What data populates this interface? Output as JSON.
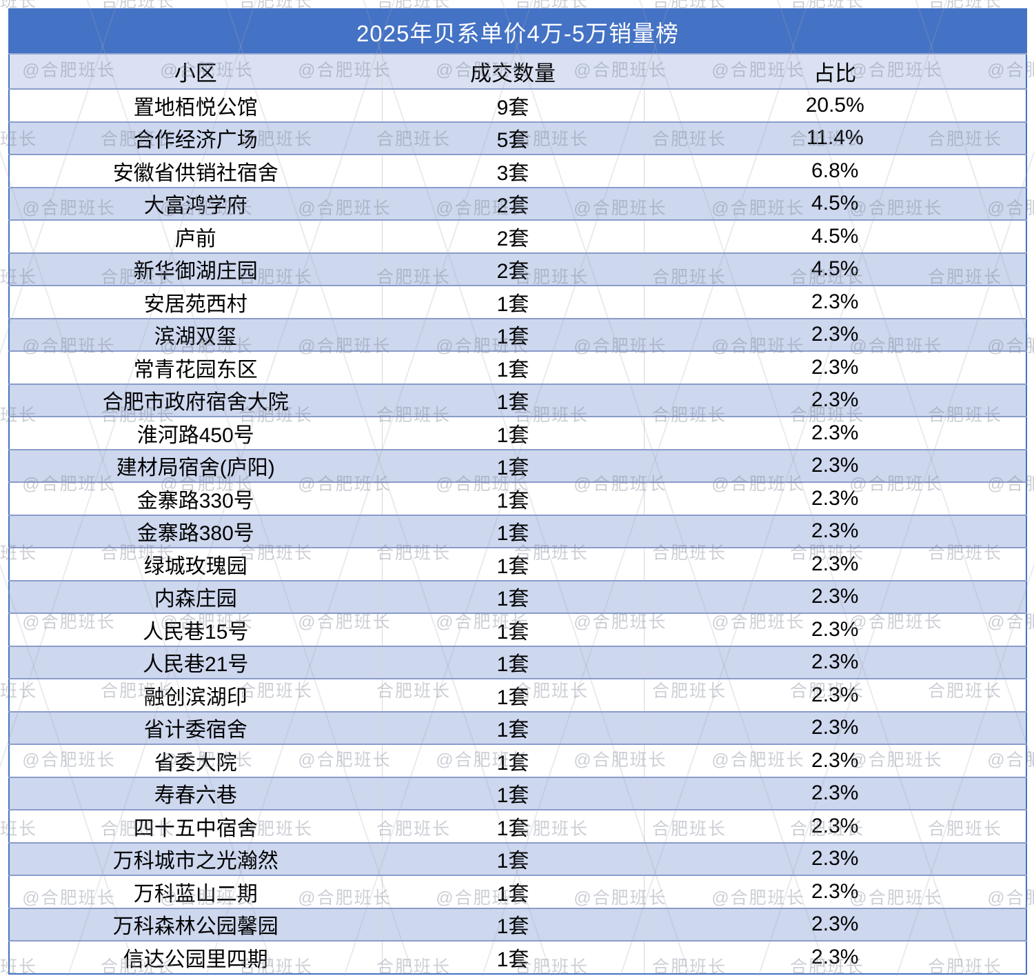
{
  "chart_data": {
    "type": "table",
    "title": "2025年贝系单价4万-5万销量榜",
    "columns": [
      "小区",
      "成交数量",
      "占比"
    ],
    "rows": [
      {
        "community": "置地栢悦公馆",
        "count": "9套",
        "share": "20.5%"
      },
      {
        "community": "合作经济广场",
        "count": "5套",
        "share": "11.4%"
      },
      {
        "community": "安徽省供销社宿舍",
        "count": "3套",
        "share": "6.8%"
      },
      {
        "community": "大富鸿学府",
        "count": "2套",
        "share": "4.5%"
      },
      {
        "community": "庐前",
        "count": "2套",
        "share": "4.5%"
      },
      {
        "community": "新华御湖庄园",
        "count": "2套",
        "share": "4.5%"
      },
      {
        "community": "安居苑西村",
        "count": "1套",
        "share": "2.3%"
      },
      {
        "community": "滨湖双玺",
        "count": "1套",
        "share": "2.3%"
      },
      {
        "community": "常青花园东区",
        "count": "1套",
        "share": "2.3%"
      },
      {
        "community": "合肥市政府宿舍大院",
        "count": "1套",
        "share": "2.3%"
      },
      {
        "community": "淮河路450号",
        "count": "1套",
        "share": "2.3%"
      },
      {
        "community": "建材局宿舍(庐阳)",
        "count": "1套",
        "share": "2.3%"
      },
      {
        "community": "金寨路330号",
        "count": "1套",
        "share": "2.3%"
      },
      {
        "community": "金寨路380号",
        "count": "1套",
        "share": "2.3%"
      },
      {
        "community": "绿城玫瑰园",
        "count": "1套",
        "share": "2.3%"
      },
      {
        "community": "内森庄园",
        "count": "1套",
        "share": "2.3%"
      },
      {
        "community": "人民巷15号",
        "count": "1套",
        "share": "2.3%"
      },
      {
        "community": "人民巷21号",
        "count": "1套",
        "share": "2.3%"
      },
      {
        "community": "融创滨湖印",
        "count": "1套",
        "share": "2.3%"
      },
      {
        "community": "省计委宿舍",
        "count": "1套",
        "share": "2.3%"
      },
      {
        "community": "省委大院",
        "count": "1套",
        "share": "2.3%"
      },
      {
        "community": "寿春六巷",
        "count": "1套",
        "share": "2.3%"
      },
      {
        "community": "四十五中宿舍",
        "count": "1套",
        "share": "2.3%"
      },
      {
        "community": "万科城市之光瀚然",
        "count": "1套",
        "share": "2.3%"
      },
      {
        "community": "万科蓝山二期",
        "count": "1套",
        "share": "2.3%"
      },
      {
        "community": "万科森林公园馨园",
        "count": "1套",
        "share": "2.3%"
      },
      {
        "community": "信达公园里四期",
        "count": "1套",
        "share": "2.3%"
      }
    ]
  },
  "watermark": {
    "text_primary": "@合肥班长",
    "text_secondary": "合肥班长"
  },
  "colors": {
    "title_bg": "#4472C4",
    "header_bg": "#D9E1F2",
    "stripe_bg": "#CDD7EE",
    "row_border": "#8A9BCB",
    "column_border": "#D8D8D8",
    "title_text": "#FFFFFF",
    "body_text": "#000000"
  }
}
